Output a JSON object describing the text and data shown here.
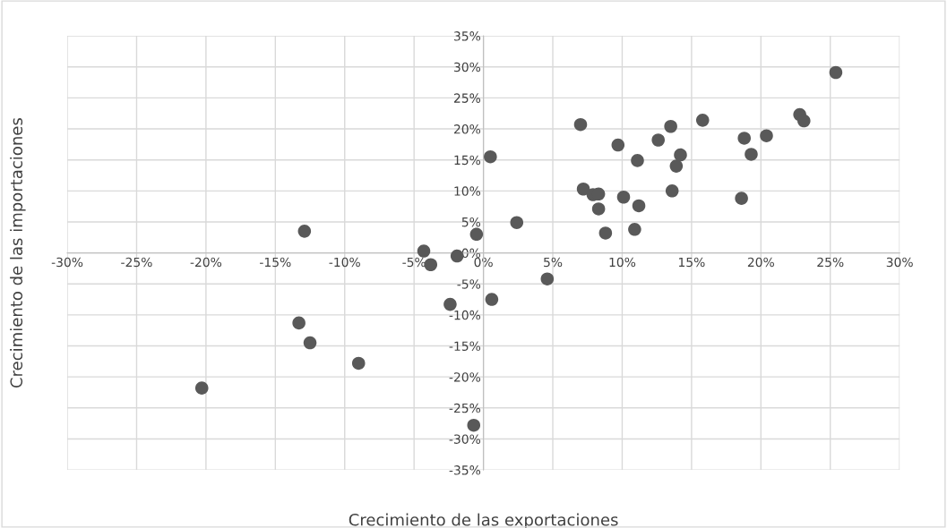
{
  "chart_data": {
    "type": "scatter",
    "xlabel": "Crecimiento de las exportaciones",
    "ylabel": "Crecimiento de las importaciones",
    "xlim": [
      -30,
      30
    ],
    "ylim": [
      -35,
      35
    ],
    "xticks": [
      {
        "value": -30,
        "label": "-30%"
      },
      {
        "value": -25,
        "label": "-25%"
      },
      {
        "value": -20,
        "label": "-20%"
      },
      {
        "value": -15,
        "label": "-15%"
      },
      {
        "value": -10,
        "label": "-10%"
      },
      {
        "value": -5,
        "label": "-5%"
      },
      {
        "value": 0,
        "label": "0%"
      },
      {
        "value": 5,
        "label": "5%"
      },
      {
        "value": 10,
        "label": "10%"
      },
      {
        "value": 15,
        "label": "15%"
      },
      {
        "value": 20,
        "label": "20%"
      },
      {
        "value": 25,
        "label": "25%"
      },
      {
        "value": 30,
        "label": "30%"
      }
    ],
    "yticks": [
      {
        "value": -35,
        "label": "-35%"
      },
      {
        "value": -30,
        "label": "-30%"
      },
      {
        "value": -25,
        "label": "-25%"
      },
      {
        "value": -20,
        "label": "-20%"
      },
      {
        "value": -15,
        "label": "-15%"
      },
      {
        "value": -10,
        "label": "-10%"
      },
      {
        "value": -5,
        "label": "-5%"
      },
      {
        "value": 0,
        "label": "0%"
      },
      {
        "value": 5,
        "label": "5%"
      },
      {
        "value": 10,
        "label": "10%"
      },
      {
        "value": 15,
        "label": "15%"
      },
      {
        "value": 20,
        "label": "20%"
      },
      {
        "value": 25,
        "label": "25%"
      },
      {
        "value": 30,
        "label": "30%"
      },
      {
        "value": 35,
        "label": "35%"
      }
    ],
    "grid": true,
    "marker": "circle",
    "series": [
      {
        "color": "#595959",
        "x": [
          -12.9,
          -4.3,
          -3.8,
          -1.9,
          -0.5,
          -2.4,
          -13.3,
          -12.5,
          -9.0,
          -20.3,
          -0.7,
          0.5,
          0.6,
          2.4,
          4.6,
          7.0,
          7.2,
          7.9,
          8.3,
          8.3,
          8.8,
          9.7,
          10.1,
          10.9,
          11.1,
          11.2,
          12.6,
          13.5,
          13.6,
          13.9,
          14.2,
          15.8,
          18.6,
          18.8,
          19.3,
          20.4,
          22.8,
          23.1,
          25.4
        ],
        "values": [
          3.5,
          0.3,
          -1.9,
          -0.5,
          3.0,
          -8.3,
          -11.3,
          -14.5,
          -17.8,
          -21.8,
          -27.8,
          15.5,
          -7.5,
          4.9,
          -4.2,
          20.7,
          10.3,
          9.4,
          9.5,
          7.1,
          3.2,
          17.4,
          9.0,
          3.8,
          14.9,
          7.6,
          18.2,
          20.4,
          10.0,
          14.0,
          15.8,
          21.4,
          8.8,
          18.5,
          15.9,
          18.9,
          22.3,
          21.3,
          29.1
        ]
      }
    ]
  }
}
